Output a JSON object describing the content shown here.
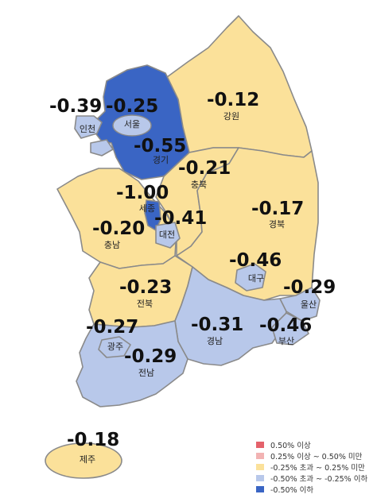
{
  "colors": {
    "rise_strong": "#e4626b",
    "rise": "#f2b3b3",
    "flat": "#fbe19a",
    "fall": "#b8c8ea",
    "fall_strong": "#3a65c4",
    "border": "#8a8a8a"
  },
  "regions": {
    "seoul": {
      "name": "서울",
      "value": "-0.25"
    },
    "incheon": {
      "name": "인천",
      "value": "-0.39"
    },
    "gyeonggi": {
      "name": "경기",
      "value": "-0.55"
    },
    "gangwon": {
      "name": "강원",
      "value": "-0.12"
    },
    "chungbuk": {
      "name": "충북",
      "value": "-0.21"
    },
    "sejong": {
      "name": "세종",
      "value": "-1.00"
    },
    "chungnam": {
      "name": "충남",
      "value": "-0.20"
    },
    "daejeon": {
      "name": "대전",
      "value": "-0.41"
    },
    "gyeongbuk": {
      "name": "경북",
      "value": "-0.17"
    },
    "daegu": {
      "name": "대구",
      "value": "-0.46"
    },
    "jeonbuk": {
      "name": "전북",
      "value": "-0.23"
    },
    "ulsan": {
      "name": "울산",
      "value": "-0.29"
    },
    "gwangju": {
      "name": "광주",
      "value": "-0.27"
    },
    "gyeongnam": {
      "name": "경남",
      "value": "-0.31"
    },
    "busan": {
      "name": "부산",
      "value": "-0.46"
    },
    "jeonnam": {
      "name": "전남",
      "value": "-0.29"
    },
    "jeju": {
      "name": "제주",
      "value": "-0.18"
    }
  },
  "legend": [
    {
      "label": "0.50% 이상",
      "color": "#e4626b"
    },
    {
      "label": "0.25% 이상 ~ 0.50% 미만",
      "color": "#f2b3b3"
    },
    {
      "label": "-0.25% 초과 ~ 0.25% 미만",
      "color": "#fbe19a"
    },
    {
      "label": "-0.50% 초과 ~ -0.25% 이하",
      "color": "#b8c8ea"
    },
    {
      "label": "-0.50% 이하",
      "color": "#3a65c4"
    }
  ]
}
